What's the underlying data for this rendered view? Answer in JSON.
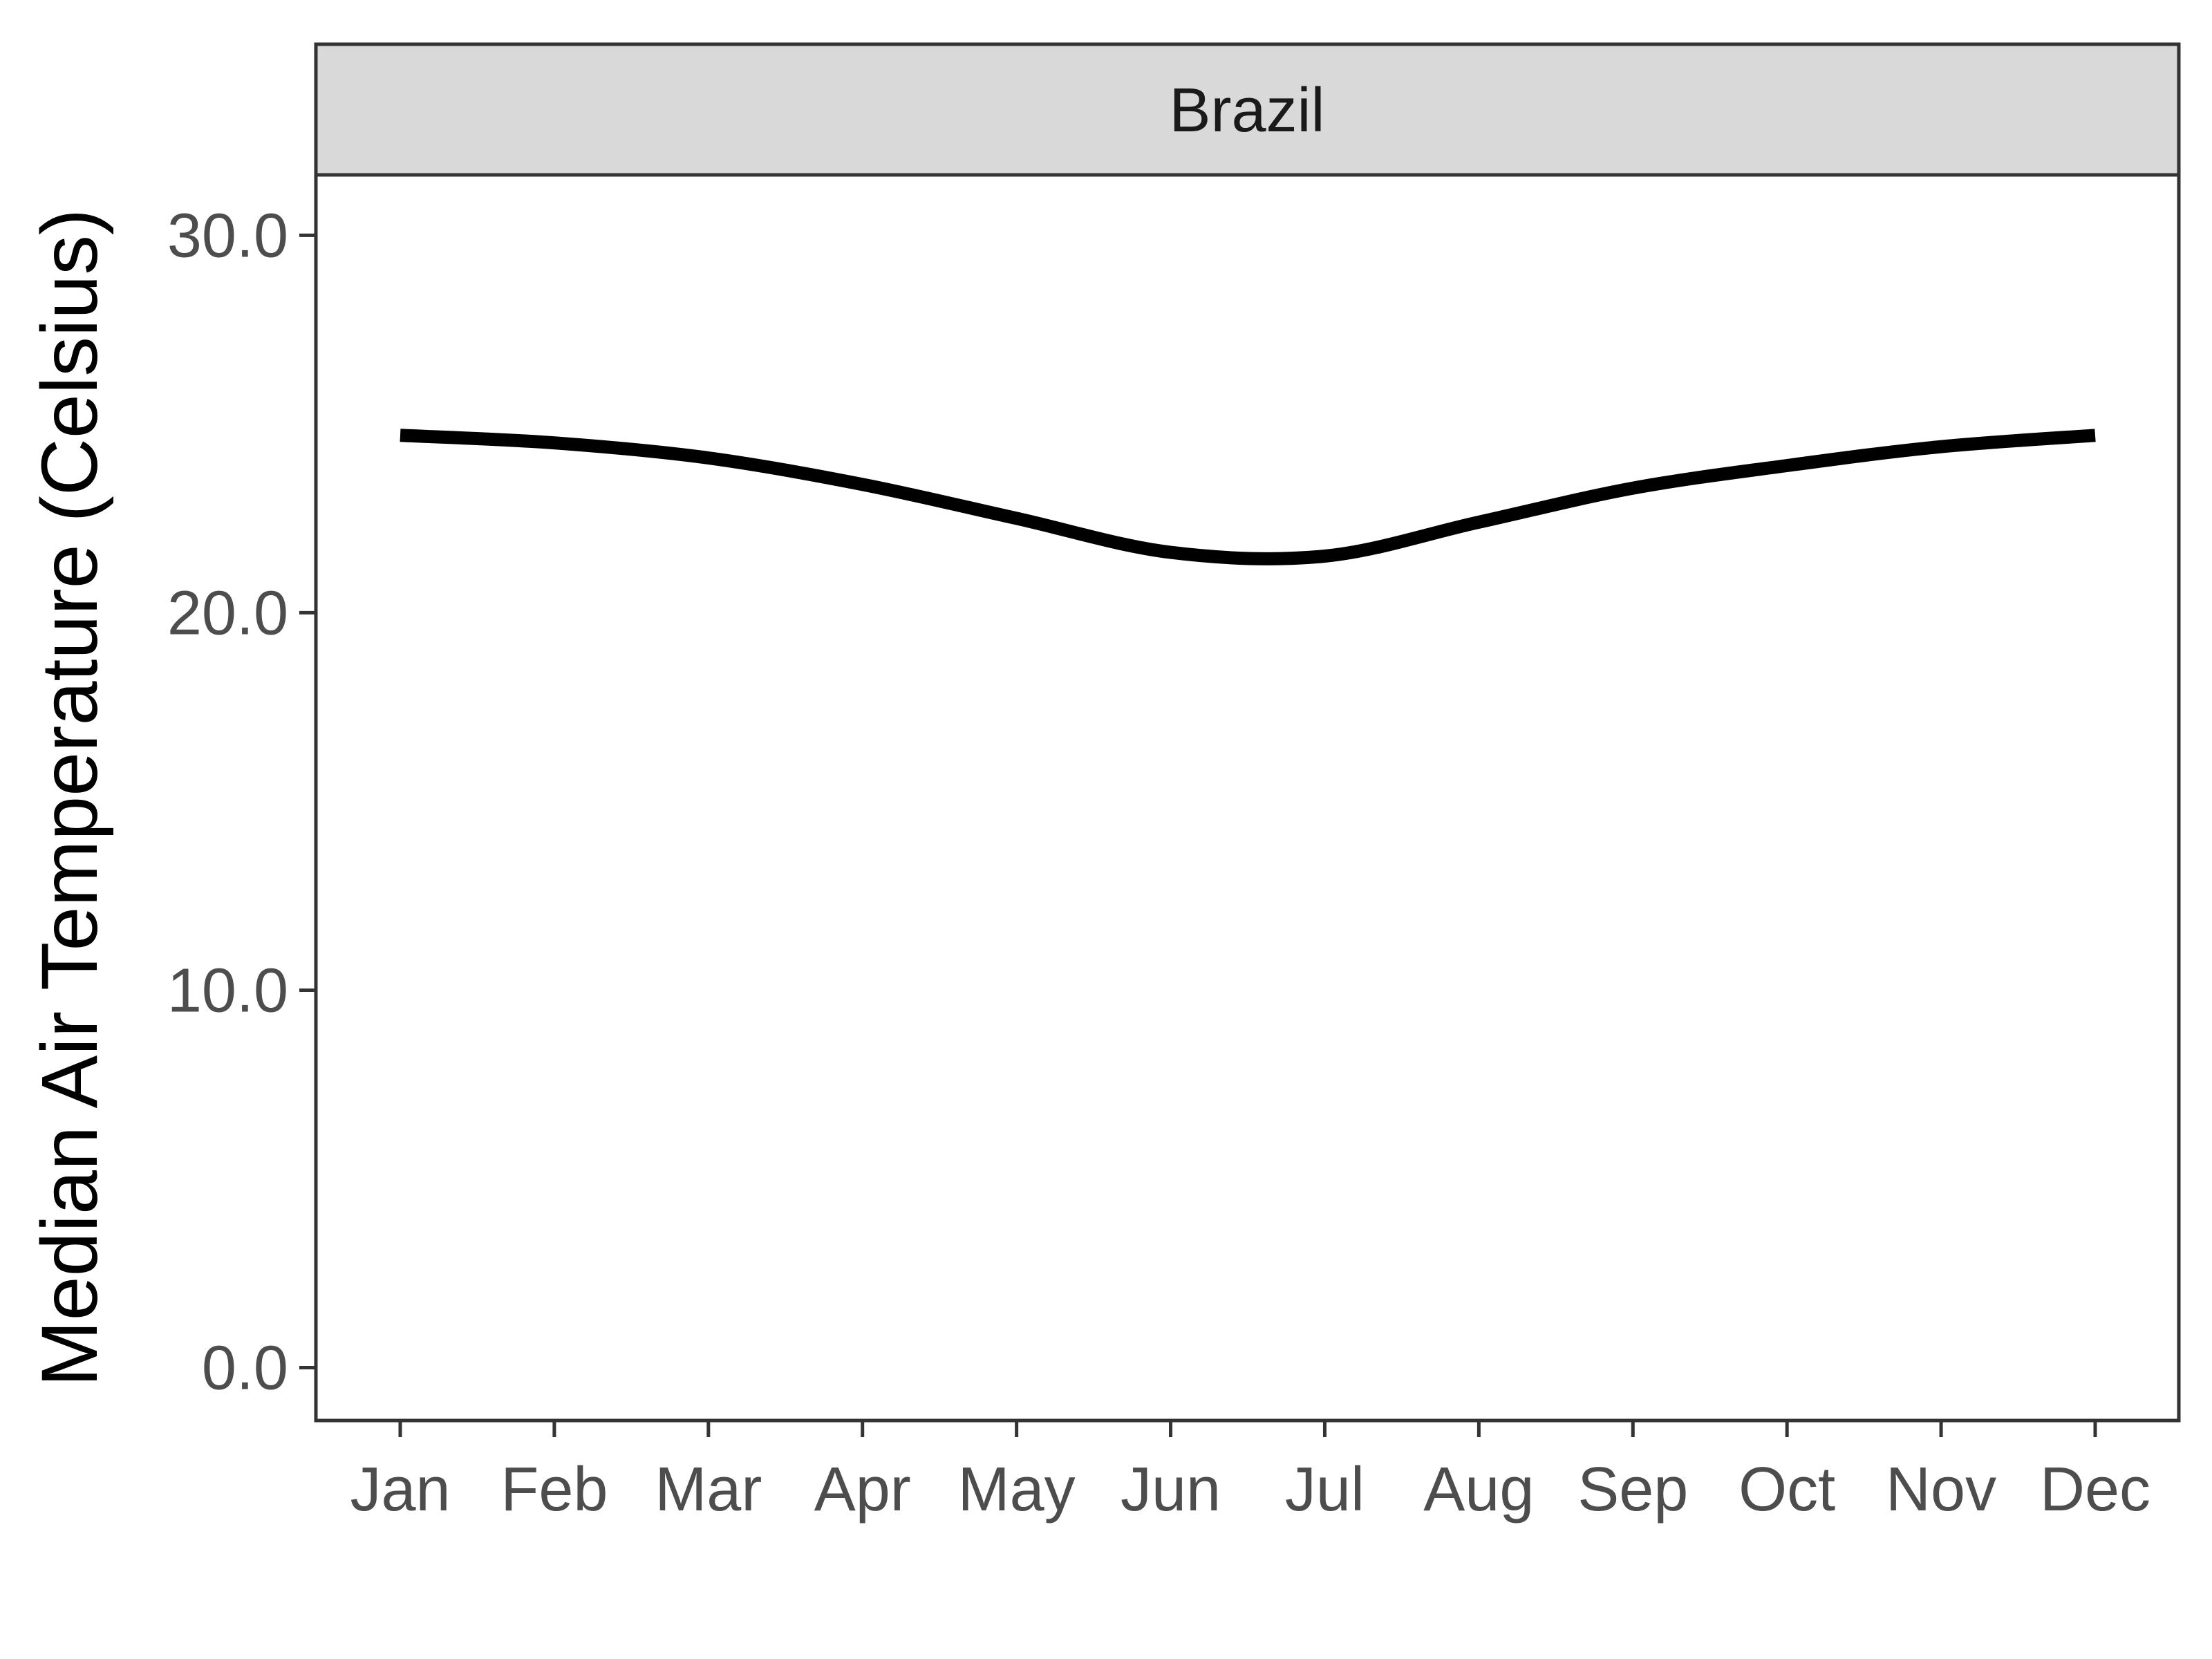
{
  "colors": {
    "line": "#000000",
    "strip_fill": "#d9d9d9",
    "border": "#333333",
    "tick_text": "#4d4d4d",
    "background": "#ffffff"
  },
  "chart_data": {
    "type": "line",
    "facet_label": "Brazil",
    "xlabel": "",
    "ylabel": "Median Air Temperature (Celsius)",
    "categories": [
      "Jan",
      "Feb",
      "Mar",
      "Apr",
      "May",
      "Jun",
      "Jul",
      "Aug",
      "Sep",
      "Oct",
      "Nov",
      "Dec"
    ],
    "yticks": [
      0.0,
      10.0,
      20.0,
      30.0
    ],
    "ytick_labels": [
      "0.0",
      "10.0",
      "20.0",
      "30.0"
    ],
    "ylim": [
      -1.4,
      31.6
    ],
    "grid": false,
    "legend": "none",
    "series": [
      {
        "values": [
          24.7,
          24.5,
          24.1,
          23.4,
          22.5,
          21.6,
          21.5,
          22.4,
          23.3,
          23.9,
          24.4,
          24.7
        ]
      }
    ]
  }
}
